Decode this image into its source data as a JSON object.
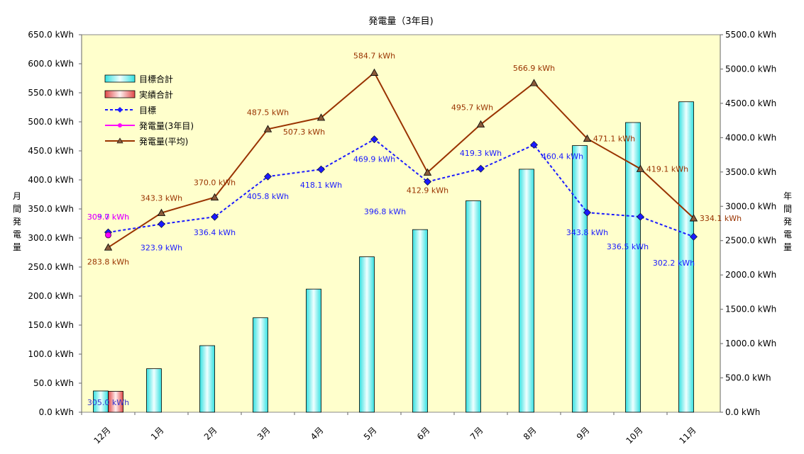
{
  "chart_data": {
    "type": "bar",
    "title": "発電量（3年目)",
    "categories": [
      "12月",
      "1月",
      "2月",
      "3月",
      "4月",
      "5月",
      "6月",
      "7月",
      "8月",
      "9月",
      "10月",
      "11月"
    ],
    "ylabel_left": "月\n間\n発\n電\n量",
    "ylabel_right": "年\n間\n発\n電\n量",
    "ylim_left": [
      0,
      650
    ],
    "ylim_right": [
      0,
      5500
    ],
    "yticks_left": [
      "0.0 kWh",
      "50.0 kWh",
      "100.0 kWh",
      "150.0 kWh",
      "200.0 kWh",
      "250.0 kWh",
      "300.0 kWh",
      "350.0 kWh",
      "400.0 kWh",
      "450.0 kWh",
      "500.0 kWh",
      "550.0 kWh",
      "600.0 kWh",
      "650.0 kWh"
    ],
    "yticks_right": [
      "0.0 kWh",
      "500.0 kWh",
      "1000.0 kWh",
      "1500.0 kWh",
      "2000.0 kWh",
      "2500.0 kWh",
      "3000.0 kWh",
      "3500.0 kWh",
      "4000.0 kWh",
      "4500.0 kWh",
      "5000.0 kWh",
      "5500.0 kWh"
    ],
    "series": [
      {
        "name": "目標合計",
        "kind": "bar",
        "axis": "right",
        "color": "#33e0e0",
        "values": [
          309.7,
          633.6,
          970.0,
          1375.8,
          1793.9,
          2263.8,
          2660.6,
          3079.9,
          3540.3,
          3884.1,
          4220.6,
          4522.8
        ]
      },
      {
        "name": "実績合計",
        "kind": "bar",
        "axis": "right",
        "color": "#e04848",
        "values": [
          305.0,
          null,
          null,
          null,
          null,
          null,
          null,
          null,
          null,
          null,
          null,
          null
        ]
      },
      {
        "name": "目標",
        "kind": "line",
        "axis": "left",
        "color": "#1a1aff",
        "dash": true,
        "values": [
          309.7,
          323.9,
          336.4,
          405.8,
          418.1,
          469.9,
          396.8,
          419.3,
          460.4,
          343.8,
          336.5,
          302.2
        ]
      },
      {
        "name": "発電量(3年目)",
        "kind": "line",
        "axis": "left",
        "color": "#ff00ff",
        "values": [
          305.0,
          null,
          null,
          null,
          null,
          null,
          null,
          null,
          null,
          null,
          null,
          null
        ]
      },
      {
        "name": "発電量(平均)",
        "kind": "line",
        "axis": "left",
        "color": "#993300",
        "values": [
          283.8,
          343.3,
          370.0,
          487.5,
          507.3,
          584.7,
          412.9,
          495.7,
          566.9,
          471.1,
          419.1,
          334.1
        ]
      }
    ],
    "data_labels": {
      "target": [
        "309.7 kWh",
        "323.9 kWh",
        "336.4 kWh",
        "405.8 kWh",
        "418.1 kWh",
        "469.9 kWh",
        "396.8 kWh",
        "419.3 kWh",
        "460.4 kWh",
        "343.8 kWh",
        "336.5 kWh",
        "302.2 kWh"
      ],
      "average": [
        "283.8 kWh",
        "343.3 kWh",
        "370.0 kWh",
        "487.5 kWh",
        "507.3 kWh",
        "584.7 kWh",
        "412.9 kWh",
        "495.7 kWh",
        "566.9 kWh",
        "471.1 kWh",
        "419.1 kWh",
        "334.1 kWh"
      ],
      "year3": [
        "305.0 kWh"
      ],
      "actual_total": [
        "305.0 kWh"
      ]
    },
    "grid": false,
    "legend": "top-left"
  }
}
